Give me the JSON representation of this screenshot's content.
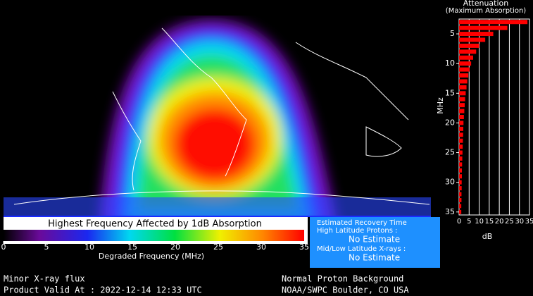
{
  "colorbar": {
    "title": "Highest Frequency Affected by 1dB Absorption",
    "xlabel": "Degraded Frequency (MHz)",
    "lim": [
      0,
      35
    ],
    "ticks": [
      0,
      5,
      10,
      15,
      20,
      25,
      30,
      35
    ]
  },
  "recovery": {
    "title": "Estimated Recovery Time",
    "high_label": "High Latitude Protons :",
    "high_value": "No Estimate",
    "low_label": "Mid/Low Latitude X-rays :",
    "low_value": "No Estimate"
  },
  "footer": {
    "left_1": "Minor X-ray flux",
    "left_2": "Product Valid At : 2022-12-14 12:33 UTC",
    "right_1": "Normal Proton Background",
    "right_2": "NOAA/SWPC Boulder, CO USA"
  },
  "chart_data": {
    "type": "bar",
    "orientation": "horizontal",
    "title": "Attenuation",
    "subtitle": "(Maximum Absorption)",
    "xlabel": "dB",
    "ylabel": "MHz",
    "color": "#ff0000",
    "grid": true,
    "categories": [
      3,
      4,
      5,
      6,
      7,
      8,
      9,
      10,
      11,
      12,
      13,
      14,
      15,
      16,
      17,
      18,
      19,
      20,
      21,
      22,
      23,
      24,
      25,
      26,
      27,
      28,
      29,
      30,
      31,
      32,
      33,
      34,
      35
    ],
    "values": [
      34,
      24,
      17,
      13,
      10,
      8.5,
      7,
      6,
      5.2,
      4.6,
      4.1,
      3.7,
      3.3,
      3,
      2.8,
      2.6,
      2.4,
      2.2,
      2.1,
      2,
      1.9,
      1.8,
      1.7,
      1.6,
      1.5,
      1.4,
      1.4,
      1.3,
      1.3,
      1.2,
      1.2,
      1.1,
      1.1
    ],
    "xlim": [
      0,
      35
    ],
    "xticks": [
      0,
      5,
      10,
      15,
      20,
      25,
      30,
      35
    ],
    "ylim": [
      2.5,
      35.5
    ],
    "yticks": [
      5,
      10,
      15,
      20,
      25,
      30,
      35
    ]
  }
}
